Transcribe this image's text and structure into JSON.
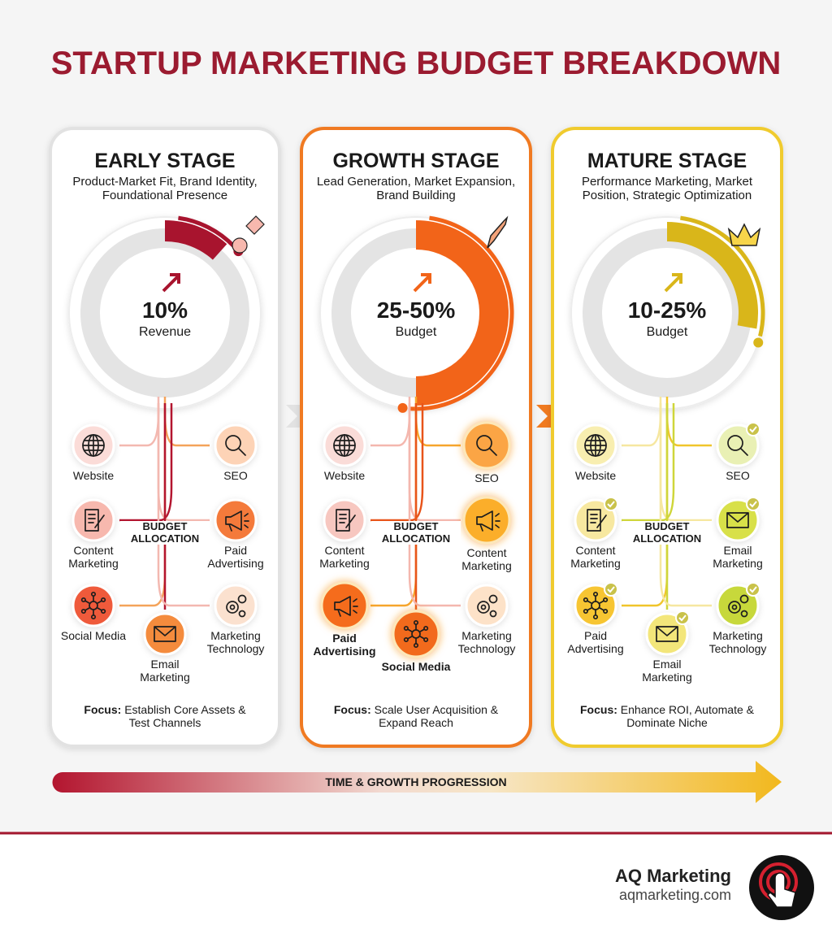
{
  "title": "STARTUP MARKETING BUDGET BREAKDOWN",
  "stages": [
    {
      "name": "EARLY STAGE",
      "description": "Product-Market Fit, Brand Identity, Foundational Presence",
      "value": "10%",
      "value_caption": "Revenue",
      "allocation_label": "BUDGET ALLOCATION",
      "channels": [
        "Website",
        "SEO",
        "Content Marketing",
        "Paid Advertising",
        "Social Media",
        "Email Marketing",
        "Marketing Technology"
      ],
      "focus_label": "Focus:",
      "focus_text": "Establish Core Assets & Test Channels"
    },
    {
      "name": "GROWTH STAGE",
      "description": "Lead Generation, Market Expansion, Brand Building",
      "value": "25-50%",
      "value_caption": "Budget",
      "allocation_label": "BUDGET ALLOCATION",
      "channels": [
        "Website",
        "SEO",
        "Content Marketing",
        "Content Marketing",
        "Paid Advertising",
        "Social Media",
        "Marketing Technology"
      ],
      "focus_label": "Focus:",
      "focus_text": "Scale User Acquisition & Expand Reach"
    },
    {
      "name": "MATURE STAGE",
      "description": "Performance Marketing, Market Position, Strategic Optimization",
      "value": "10-25%",
      "value_caption": "Budget",
      "allocation_label": "BUDGET ALLOCATION",
      "channels": [
        "Website",
        "SEO",
        "Content Marketing",
        "Email Marketing",
        "Paid Advertising",
        "Email Marketing",
        "Marketing Technology"
      ],
      "focus_label": "Focus:",
      "focus_text": "Enhance ROI, Automate & Dominate Niche"
    }
  ],
  "progression_label": "TIME & GROWTH PROGRESSION",
  "footer": {
    "brand": "AQ Marketing",
    "website": "aqmarketing.com"
  }
}
